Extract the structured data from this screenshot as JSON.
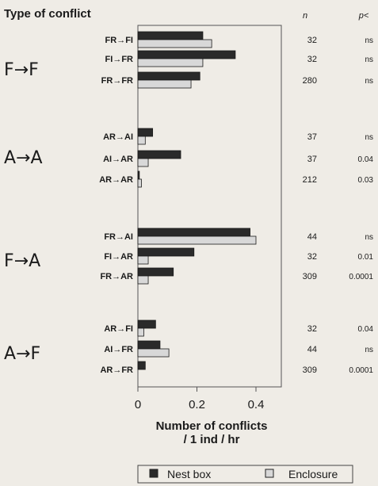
{
  "chart_data": {
    "type": "bar",
    "orientation": "horizontal",
    "header_title": "Type of conflict",
    "col_n": "n",
    "col_p": "p<",
    "xlabel_line1": "Number of conflicts",
    "xlabel_line2": "/ 1 ind / hr",
    "xlim": [
      0,
      0.5
    ],
    "xticks": [
      "0",
      "0.2",
      "0.4"
    ],
    "xtick_values": [
      0,
      0.2,
      0.4
    ],
    "grid": false,
    "legend_placement": "bottom",
    "colors": {
      "nest_box": "#2a2a2a",
      "enclosure": "#d8d8d8"
    },
    "series": [
      {
        "name": "Nest box"
      },
      {
        "name": "Enclosure"
      }
    ],
    "groups": [
      {
        "label": "F→F",
        "rows": [
          {
            "label": "FR→FI",
            "nest_box": 0.22,
            "enclosure": 0.25,
            "n": "32",
            "p": "ns"
          },
          {
            "label": "FI→FR",
            "nest_box": 0.33,
            "enclosure": 0.22,
            "n": "32",
            "p": "ns"
          },
          {
            "label": "FR→FR",
            "nest_box": 0.21,
            "enclosure": 0.18,
            "n": "280",
            "p": "ns"
          }
        ]
      },
      {
        "label": "A→A",
        "rows": [
          {
            "label": "AR→AI",
            "nest_box": 0.05,
            "enclosure": 0.025,
            "n": "37",
            "p": "ns"
          },
          {
            "label": "AI→AR",
            "nest_box": 0.145,
            "enclosure": 0.035,
            "n": "37",
            "p": "0.04"
          },
          {
            "label": "AR→AR",
            "nest_box": 0.005,
            "enclosure": 0.012,
            "n": "212",
            "p": "0.03"
          }
        ]
      },
      {
        "label": "F→A",
        "rows": [
          {
            "label": "FR→AI",
            "nest_box": 0.38,
            "enclosure": 0.4,
            "n": "44",
            "p": "ns"
          },
          {
            "label": "FI→AR",
            "nest_box": 0.19,
            "enclosure": 0.035,
            "n": "32",
            "p": "0.01"
          },
          {
            "label": "FR→AR",
            "nest_box": 0.12,
            "enclosure": 0.035,
            "n": "309",
            "p": "0.0001"
          }
        ]
      },
      {
        "label": "A→F",
        "rows": [
          {
            "label": "AR→FI",
            "nest_box": 0.06,
            "enclosure": 0.02,
            "n": "32",
            "p": "0.04"
          },
          {
            "label": "AI→FR",
            "nest_box": 0.075,
            "enclosure": 0.105,
            "n": "44",
            "p": "ns"
          },
          {
            "label": "AR→FR",
            "nest_box": 0.025,
            "enclosure": 0.0,
            "n": "309",
            "p": "0.0001"
          }
        ]
      }
    ]
  }
}
